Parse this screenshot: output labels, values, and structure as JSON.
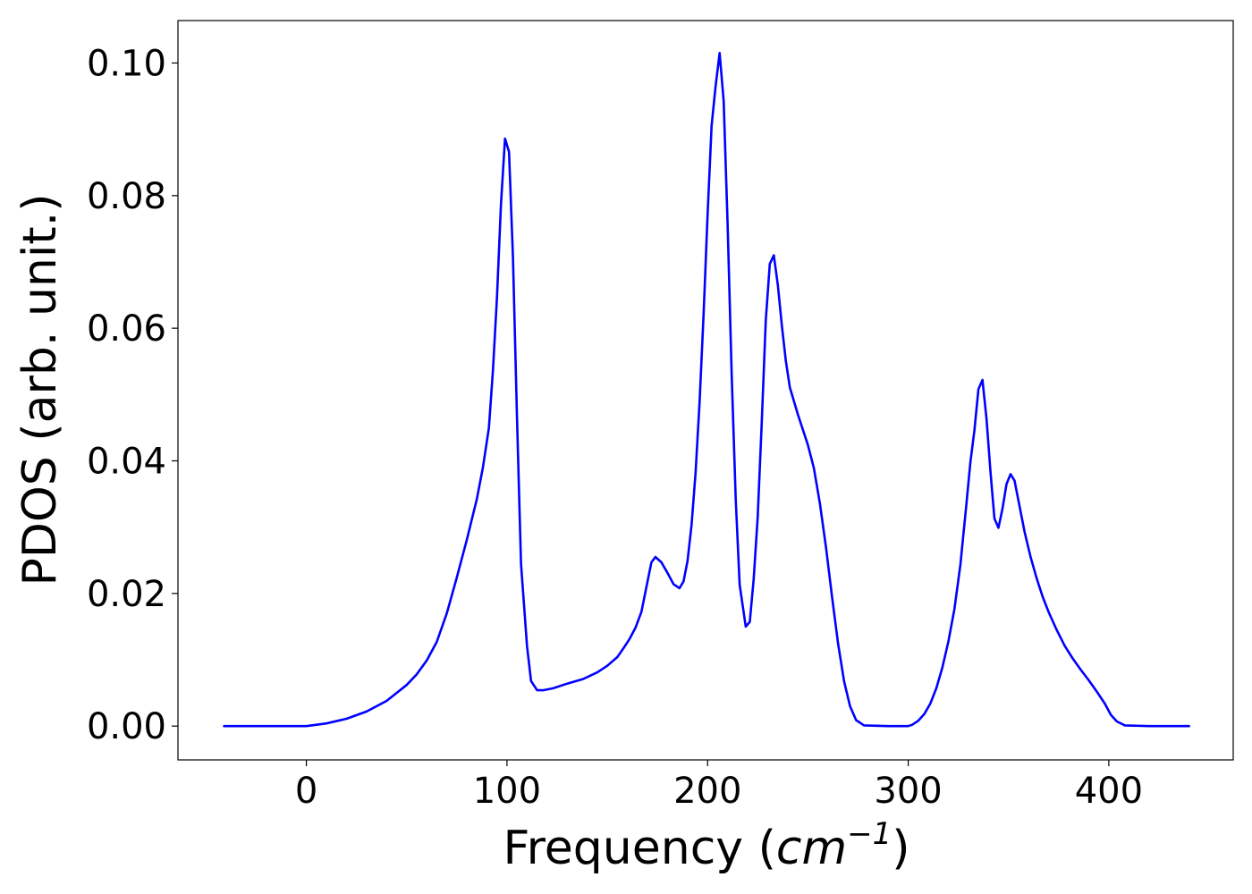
{
  "chart_data": {
    "type": "line",
    "title": "",
    "xlabel": "Frequency (",
    "xlabel_unit_base": "cm",
    "xlabel_unit_exp": "−1",
    "xlabel_close": ")",
    "ylabel": "PDOS (arb. unit.)",
    "xlim": [
      -64,
      462
    ],
    "ylim": [
      -0.0051,
      0.1064
    ],
    "xticks": [
      0,
      100,
      200,
      300,
      400
    ],
    "xtick_labels": [
      "0",
      "100",
      "200",
      "300",
      "400"
    ],
    "yticks": [
      0.0,
      0.02,
      0.04,
      0.06,
      0.08,
      0.1
    ],
    "ytick_labels": [
      "0.00",
      "0.02",
      "0.04",
      "0.06",
      "0.08",
      "0.10"
    ],
    "grid": false,
    "legend": "none",
    "series": [
      {
        "color": "#0000ff",
        "points": [
          [
            -41,
            0.0
          ],
          [
            0,
            0.0
          ],
          [
            10,
            0.0004
          ],
          [
            20,
            0.0011
          ],
          [
            30,
            0.0022
          ],
          [
            40,
            0.0038
          ],
          [
            50,
            0.0062
          ],
          [
            55,
            0.0078
          ],
          [
            60,
            0.0099
          ],
          [
            65,
            0.0127
          ],
          [
            70,
            0.017
          ],
          [
            75,
            0.0224
          ],
          [
            80,
            0.0281
          ],
          [
            85,
            0.0343
          ],
          [
            88,
            0.039
          ],
          [
            91,
            0.045
          ],
          [
            93,
            0.0536
          ],
          [
            95,
            0.0646
          ],
          [
            97,
            0.0787
          ],
          [
            99,
            0.0886
          ],
          [
            101,
            0.0866
          ],
          [
            103,
            0.0707
          ],
          [
            105,
            0.0466
          ],
          [
            107,
            0.0245
          ],
          [
            110,
            0.0121
          ],
          [
            112,
            0.0068
          ],
          [
            115,
            0.0054
          ],
          [
            118,
            0.0054
          ],
          [
            123,
            0.0057
          ],
          [
            130,
            0.0064
          ],
          [
            138,
            0.0071
          ],
          [
            145,
            0.0081
          ],
          [
            150,
            0.0091
          ],
          [
            155,
            0.0104
          ],
          [
            158,
            0.0117
          ],
          [
            161,
            0.0131
          ],
          [
            164,
            0.0148
          ],
          [
            167,
            0.0172
          ],
          [
            170,
            0.0217
          ],
          [
            172,
            0.0247
          ],
          [
            174,
            0.0255
          ],
          [
            177,
            0.0247
          ],
          [
            180,
            0.0231
          ],
          [
            183,
            0.0214
          ],
          [
            186,
            0.0208
          ],
          [
            188,
            0.0218
          ],
          [
            190,
            0.0249
          ],
          [
            192,
            0.0303
          ],
          [
            194,
            0.0382
          ],
          [
            196,
            0.0489
          ],
          [
            198,
            0.0622
          ],
          [
            200,
            0.077
          ],
          [
            202,
            0.0905
          ],
          [
            204,
            0.0965
          ],
          [
            206,
            0.1015
          ],
          [
            208,
            0.0943
          ],
          [
            210,
            0.0754
          ],
          [
            212,
            0.0529
          ],
          [
            214,
            0.0342
          ],
          [
            216,
            0.0213
          ],
          [
            219,
            0.015
          ],
          [
            221,
            0.0157
          ],
          [
            223,
            0.0222
          ],
          [
            225,
            0.0316
          ],
          [
            227,
            0.0458
          ],
          [
            229,
            0.0612
          ],
          [
            231,
            0.0697
          ],
          [
            233,
            0.071
          ],
          [
            235,
            0.0665
          ],
          [
            237,
            0.0605
          ],
          [
            239,
            0.0551
          ],
          [
            241,
            0.0511
          ],
          [
            245,
            0.047
          ],
          [
            250,
            0.0424
          ],
          [
            253,
            0.0389
          ],
          [
            256,
            0.0335
          ],
          [
            259,
            0.027
          ],
          [
            262,
            0.0196
          ],
          [
            265,
            0.0125
          ],
          [
            268,
            0.0068
          ],
          [
            271,
            0.003
          ],
          [
            274,
            0.0009
          ],
          [
            278,
            0.0001
          ],
          [
            290,
            0.0
          ],
          [
            300,
            0.0
          ],
          [
            302,
            0.0002
          ],
          [
            305,
            0.0008
          ],
          [
            308,
            0.0018
          ],
          [
            311,
            0.0034
          ],
          [
            314,
            0.0057
          ],
          [
            317,
            0.0088
          ],
          [
            320,
            0.0127
          ],
          [
            323,
            0.0176
          ],
          [
            326,
            0.0243
          ],
          [
            329,
            0.0334
          ],
          [
            331,
            0.0398
          ],
          [
            333,
            0.0446
          ],
          [
            335,
            0.0508
          ],
          [
            337,
            0.0522
          ],
          [
            339,
            0.0464
          ],
          [
            341,
            0.0383
          ],
          [
            343,
            0.0313
          ],
          [
            345,
            0.0299
          ],
          [
            347,
            0.0328
          ],
          [
            349,
            0.0365
          ],
          [
            351,
            0.038
          ],
          [
            353,
            0.037
          ],
          [
            355,
            0.0339
          ],
          [
            358,
            0.0293
          ],
          [
            361,
            0.0255
          ],
          [
            364,
            0.0223
          ],
          [
            367,
            0.0195
          ],
          [
            370,
            0.0172
          ],
          [
            374,
            0.0145
          ],
          [
            378,
            0.0121
          ],
          [
            382,
            0.0102
          ],
          [
            386,
            0.0085
          ],
          [
            390,
            0.0069
          ],
          [
            394,
            0.0052
          ],
          [
            398,
            0.0034
          ],
          [
            401,
            0.0017
          ],
          [
            404,
            0.0007
          ],
          [
            408,
            0.0001
          ],
          [
            420,
            0.0
          ],
          [
            440,
            0.0
          ]
        ]
      }
    ]
  }
}
